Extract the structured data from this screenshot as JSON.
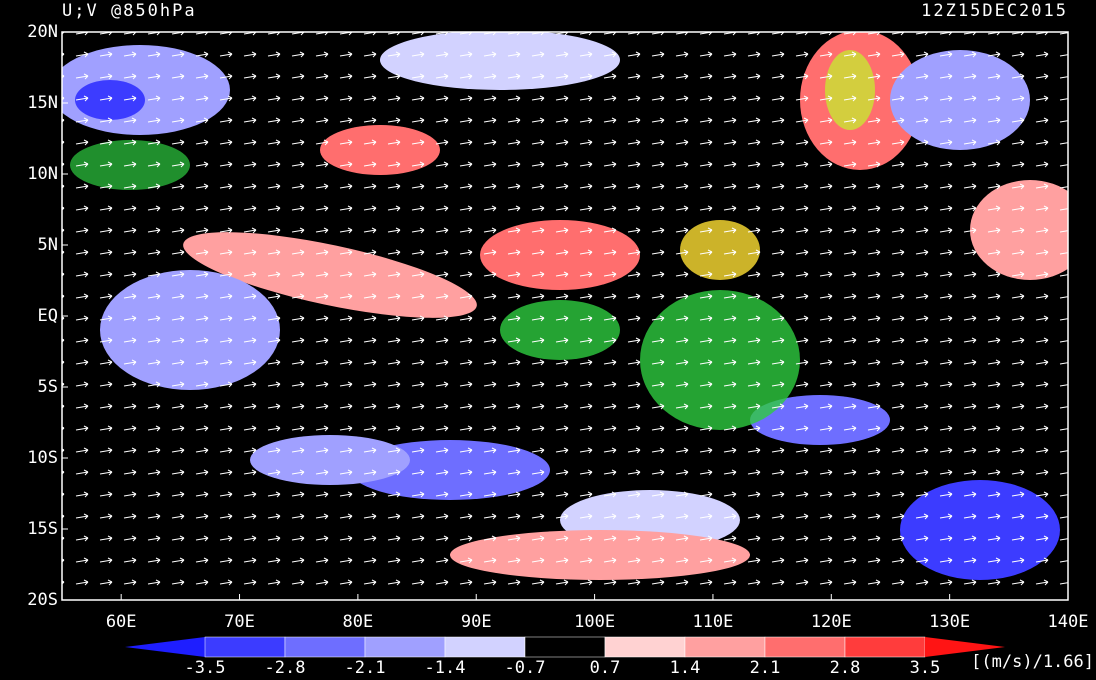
{
  "map": {
    "title": "U;V @850hPa",
    "time": "12Z15DEC2015",
    "xlim": [
      55,
      140
    ],
    "ylim": [
      -20,
      20
    ],
    "xticks": [
      {
        "value": 60,
        "label": "60E"
      },
      {
        "value": 70,
        "label": "70E"
      },
      {
        "value": 80,
        "label": "80E"
      },
      {
        "value": 90,
        "label": "90E"
      },
      {
        "value": 100,
        "label": "100E"
      },
      {
        "value": 110,
        "label": "110E"
      },
      {
        "value": 120,
        "label": "120E"
      },
      {
        "value": 130,
        "label": "130E"
      },
      {
        "value": 140,
        "label": "140E"
      }
    ],
    "yticks": [
      {
        "value": 20,
        "label": "20N"
      },
      {
        "value": 15,
        "label": "15N"
      },
      {
        "value": 10,
        "label": "10N"
      },
      {
        "value": 5,
        "label": "5N"
      },
      {
        "value": 0,
        "label": "EQ"
      },
      {
        "value": -5,
        "label": "5S"
      },
      {
        "value": -10,
        "label": "10S"
      },
      {
        "value": -15,
        "label": "15S"
      },
      {
        "value": -20,
        "label": "20S"
      }
    ]
  },
  "colorbar": {
    "levels": [
      -3.5,
      -2.8,
      -2.1,
      -1.4,
      -0.7,
      0.7,
      1.4,
      2.1,
      2.8,
      3.5
    ],
    "colors": [
      "#1e1eff",
      "#3c3cff",
      "#6e6eff",
      "#a0a0ff",
      "#d2d2ff",
      "#000000",
      "#ffd2d2",
      "#ffa0a0",
      "#ff6e6e",
      "#ff3c3c",
      "#ff1414"
    ],
    "units": "[(m/s)/1.66]"
  }
}
